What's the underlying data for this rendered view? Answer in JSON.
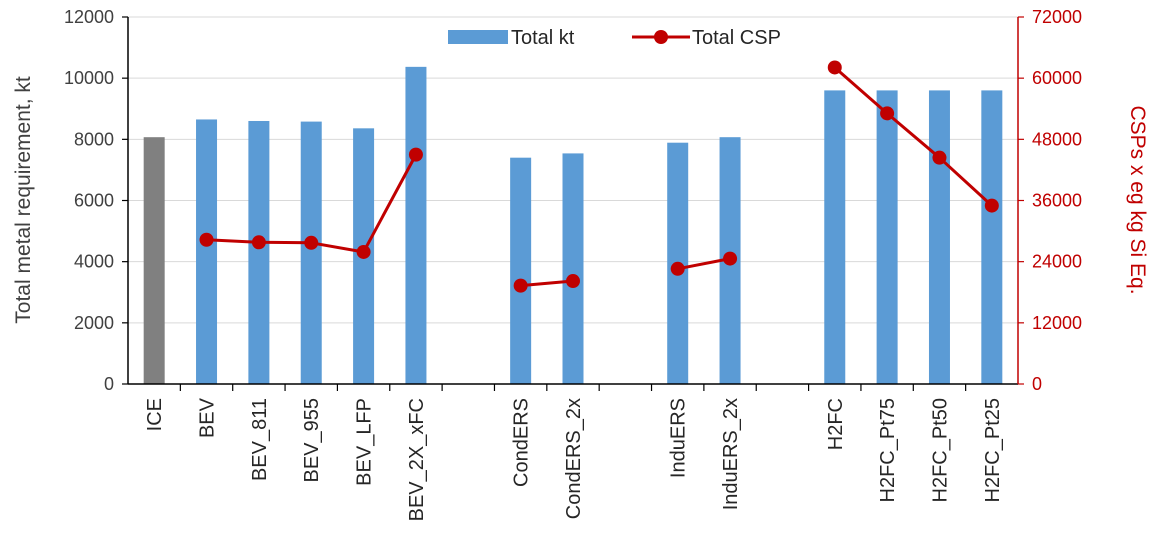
{
  "chart_data": {
    "type": "bar",
    "categories": [
      "ICE",
      "BEV",
      "BEV_811",
      "BEV_955",
      "BEV_LFP",
      "BEV_2X_xFC",
      "CondERS",
      "CondERS_2x",
      "InduERS",
      "InduERS_2x",
      "H2FC",
      "H2FC_Pt75",
      "H2FC_Pt50",
      "H2FC_Pt25"
    ],
    "groups": [
      [
        "ICE",
        "BEV",
        "BEV_811",
        "BEV_955",
        "BEV_LFP",
        "BEV_2X_xFC"
      ],
      [
        "CondERS",
        "CondERS_2x"
      ],
      [
        "InduERS",
        "InduERS_2x"
      ],
      [
        "H2FC",
        "H2FC_Pt75",
        "H2FC_Pt50",
        "H2FC_Pt25"
      ]
    ],
    "series": [
      {
        "name": "Total kt",
        "type": "bar",
        "axis": "left",
        "color": "#5b9bd5",
        "highlight": {
          "category": "ICE",
          "color": "#808080"
        },
        "values": [
          8070,
          8650,
          8600,
          8580,
          8360,
          10370,
          7400,
          7540,
          7890,
          8070,
          9600,
          9600,
          9600,
          9600
        ]
      },
      {
        "name": "Total CSP",
        "type": "line",
        "axis": "right",
        "color": "#c00000",
        "segments": [
          {
            "categories": [
              "BEV",
              "BEV_811",
              "BEV_955",
              "BEV_LFP",
              "BEV_2X_xFC"
            ],
            "values": [
              28300,
              27800,
              27700,
              25900,
              45000
            ]
          },
          {
            "categories": [
              "CondERS",
              "CondERS_2x"
            ],
            "values": [
              19300,
              20200
            ]
          },
          {
            "categories": [
              "InduERS",
              "InduERS_2x"
            ],
            "values": [
              22600,
              24600
            ]
          },
          {
            "categories": [
              "H2FC",
              "H2FC_Pt75",
              "H2FC_Pt50",
              "H2FC_Pt25"
            ],
            "values": [
              62100,
              53100,
              44400,
              35000
            ]
          }
        ]
      }
    ],
    "ylabel_left": "Total metal requirement, kt",
    "ylabel_right": "CSPs x eg kg Si Eq.",
    "ylim_left": [
      0,
      12000
    ],
    "yticks_left": [
      "0",
      "2000",
      "4000",
      "6000",
      "8000",
      "10000",
      "12000"
    ],
    "ylim_right": [
      0,
      72000
    ],
    "yticks_right": [
      "0",
      "12000",
      "24000",
      "36000",
      "48000",
      "60000",
      "72000"
    ],
    "grid": true,
    "legend": {
      "position": "top",
      "entries": [
        "Total kt",
        "Total CSP"
      ]
    }
  }
}
